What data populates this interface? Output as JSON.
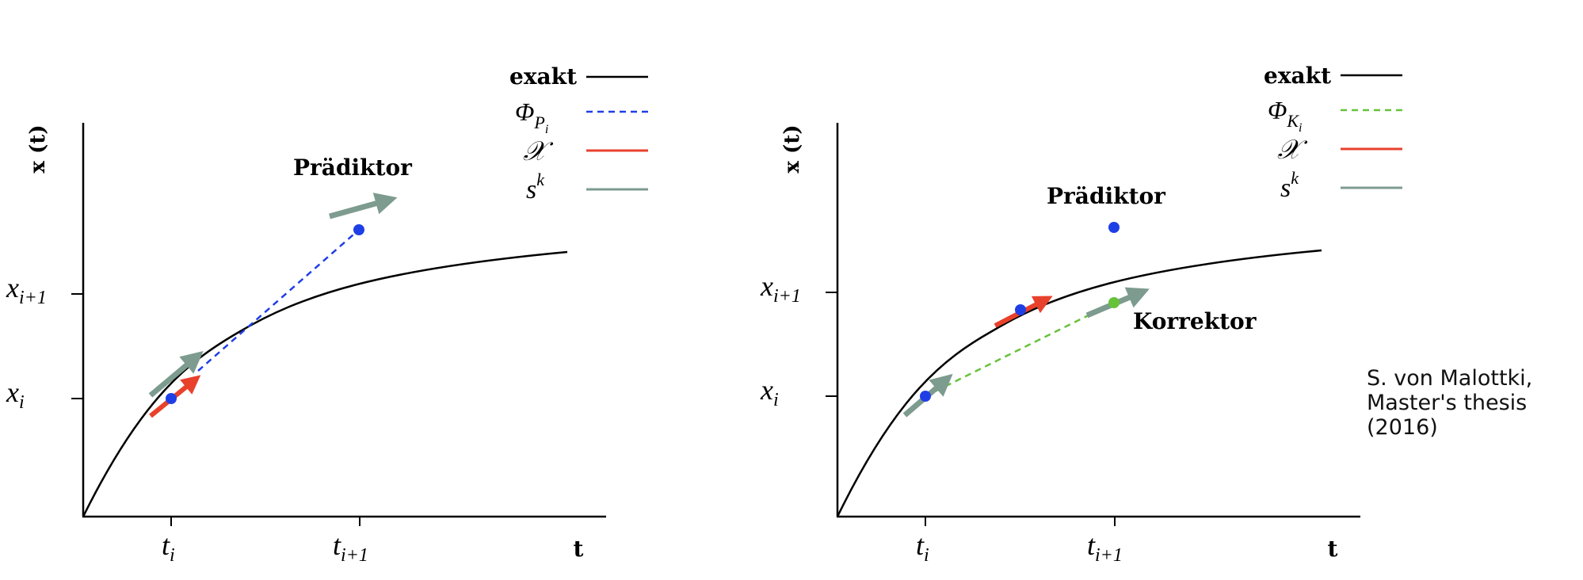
{
  "colors": {
    "exact": "#000000",
    "predictor": "#1f3fe6",
    "corrector": "#66c23a",
    "chi": "#e8412c",
    "sk": "#7d9b8f"
  },
  "panels": [
    {
      "ylabel": "x (t)",
      "xlabel": "t",
      "ticks_x": [
        {
          "base": "t",
          "sub": "i"
        },
        {
          "base": "t",
          "sub": "i+1"
        }
      ],
      "ticks_y": [
        {
          "base": "x",
          "sub": "i+1"
        },
        {
          "base": "x",
          "sub": "i"
        }
      ],
      "legend": [
        {
          "label": "exakt",
          "style": "exact"
        },
        {
          "label": "Φ",
          "sub": "P",
          "subsub": "i",
          "style": "predictor"
        },
        {
          "label": "𝒳",
          "style": "chi"
        },
        {
          "label": "s",
          "sup": "k",
          "style": "sk"
        }
      ],
      "annotations": [
        {
          "text": "Prädiktor"
        }
      ]
    },
    {
      "ylabel": "x (t)",
      "xlabel": "t",
      "ticks_x": [
        {
          "base": "t",
          "sub": "i"
        },
        {
          "base": "t",
          "sub": "i+1"
        }
      ],
      "ticks_y": [
        {
          "base": "x",
          "sub": "i+1"
        },
        {
          "base": "x",
          "sub": "i"
        }
      ],
      "legend": [
        {
          "label": "exakt",
          "style": "exact"
        },
        {
          "label": "Φ",
          "sub": "K",
          "subsub": "i",
          "style": "corrector"
        },
        {
          "label": "𝒳",
          "style": "chi"
        },
        {
          "label": "s",
          "sup": "k",
          "style": "sk"
        }
      ],
      "annotations": [
        {
          "text": "Prädiktor"
        },
        {
          "text": "Korrektor"
        }
      ]
    }
  ],
  "credit": [
    "S. von Malottki,",
    "Master's thesis",
    "(2016)"
  ]
}
